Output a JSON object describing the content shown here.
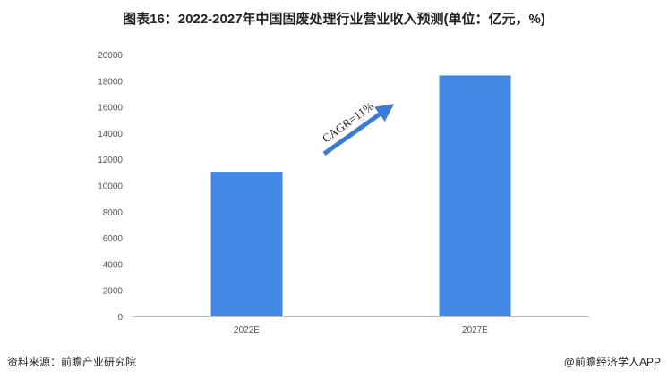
{
  "chart_data": {
    "type": "bar",
    "title": "图表16：2022-2027年中国固废处理行业营业收入预测(单位：亿元，%)",
    "categories": [
      "2022E",
      "2027E"
    ],
    "values": [
      11050,
      18400
    ],
    "ylim": [
      0,
      20000
    ],
    "yticks": [
      0,
      2000,
      4000,
      6000,
      8000,
      10000,
      12000,
      14000,
      16000,
      18000,
      20000
    ],
    "grid": false,
    "bar_color": "#4287E2",
    "annotation": "CAGR=11%"
  },
  "footer": {
    "source": "资料来源：前瞻产业研究院",
    "brand": "@前瞻经济学人APP"
  }
}
